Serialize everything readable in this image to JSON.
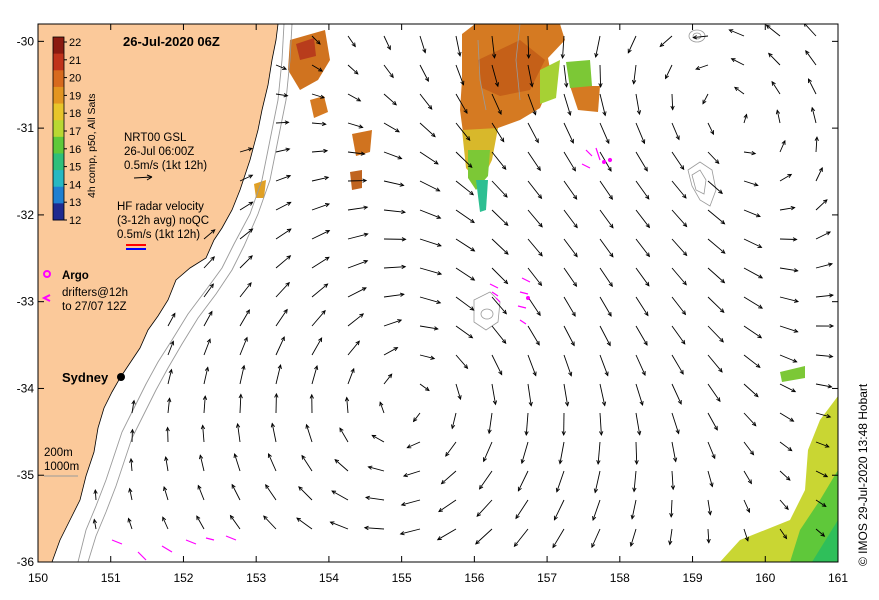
{
  "title": "26-Jul-2020 06Z",
  "colorbar": {
    "label": "4h comp, p50, All Sats",
    "ticks": [
      "22",
      "21",
      "20",
      "19",
      "18",
      "17",
      "16",
      "15",
      "14",
      "13",
      "12"
    ],
    "colors": [
      "#8b1a10",
      "#c0331b",
      "#d86a1d",
      "#e39520",
      "#e8c52a",
      "#b9d832",
      "#5ec93a",
      "#2fbf7a",
      "#27b8c2",
      "#1f7fd0",
      "#1f2a8f"
    ]
  },
  "legend": {
    "gsl_title": "NRT00 GSL",
    "gsl_time": "26-Jul 06:00Z",
    "gsl_scale": "0.5m/s (1kt 12h)",
    "hf_title": "HF radar velocity",
    "hf_note": "(3-12h avg) noQC",
    "hf_scale": "0.5m/s (1kt 12h)",
    "argo": "Argo",
    "drifters": "drifters@12h",
    "drifters_to": "to 27/07 12Z",
    "city": "Sydney",
    "iso1": "200m",
    "iso2": "1000m"
  },
  "axes": {
    "x_ticks": [
      "150",
      "151",
      "152",
      "153",
      "154",
      "155",
      "156",
      "157",
      "158",
      "159",
      "160",
      "161"
    ],
    "y_ticks": [
      "-30",
      "-31",
      "-32",
      "-33",
      "-34",
      "-35",
      "-36"
    ],
    "xlim": [
      150,
      161
    ],
    "ylim": [
      -36,
      -29.8
    ]
  },
  "credit": "© IMOS 29-Jul-2020 13:48 Hobart",
  "colors": {
    "land": "#fbc99a",
    "argo": "#ff00ff",
    "hf_red": "#ff0000",
    "hf_blue": "#0000ff"
  }
}
